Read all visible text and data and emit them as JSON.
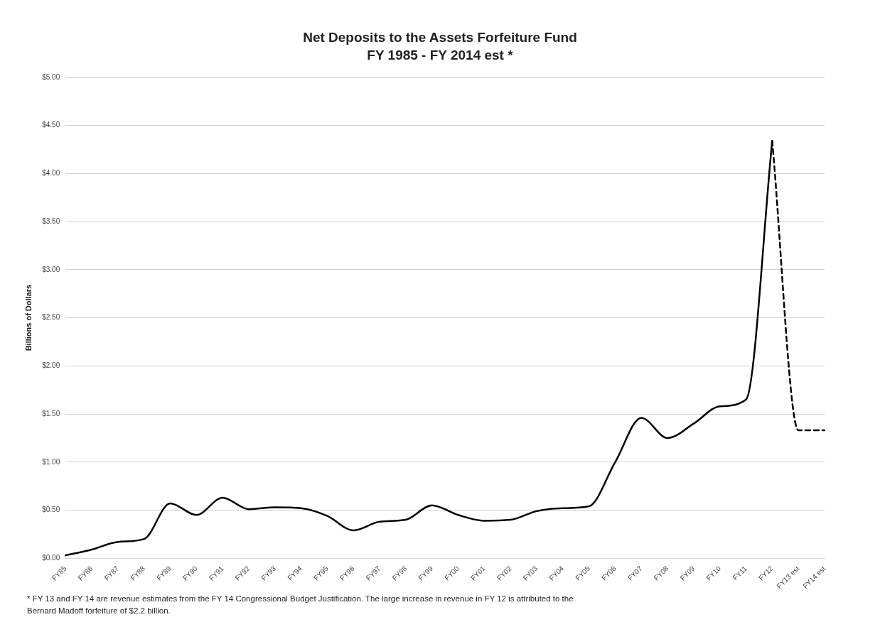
{
  "chart_data": {
    "type": "line",
    "title": "Net Deposits to the Assets Forfeiture Fund",
    "subtitle": "FY 1985 - FY 2014 est *",
    "ylabel": "Billions of Dollars",
    "categories": [
      "FY85",
      "FY86",
      "FY87",
      "FY88",
      "FY89",
      "FY90",
      "FY91",
      "FY92",
      "FY93",
      "FY94",
      "FY95",
      "FY96",
      "FY97",
      "FY98",
      "FY99",
      "FY00",
      "FY01",
      "FY02",
      "FY03",
      "FY04",
      "FY05",
      "FY06",
      "FY07",
      "FY08",
      "FY09",
      "FY10",
      "FY11",
      "FY12",
      "FY13 est",
      "FY14 est"
    ],
    "series": [
      {
        "color": "#000000",
        "line_style": "solid",
        "values": [
          0.03,
          0.09,
          0.17,
          0.2,
          0.57,
          0.45,
          0.63,
          0.51,
          0.53,
          0.52,
          0.44,
          0.29,
          0.38,
          0.4,
          0.55,
          0.45,
          0.39,
          0.4,
          0.49,
          0.52,
          0.54,
          1.0,
          1.46,
          1.25,
          1.4,
          1.58,
          1.65,
          4.34,
          null,
          null
        ]
      },
      {
        "color": "#000000",
        "line_style": "dashed",
        "values": [
          null,
          null,
          null,
          null,
          null,
          null,
          null,
          null,
          null,
          null,
          null,
          null,
          null,
          null,
          null,
          null,
          null,
          null,
          null,
          null,
          null,
          null,
          null,
          null,
          null,
          null,
          null,
          4.34,
          1.33,
          1.33
        ]
      }
    ],
    "ylim": [
      0,
      5
    ],
    "yticks": [
      {
        "value": 0,
        "label": "$0.00"
      },
      {
        "value": 0.5,
        "label": "$0.50"
      },
      {
        "value": 1,
        "label": "$1.00"
      },
      {
        "value": 1.5,
        "label": "$1.50"
      },
      {
        "value": 2,
        "label": "$2.00"
      },
      {
        "value": 2.5,
        "label": "$2.50"
      },
      {
        "value": 3,
        "label": "$3.00"
      },
      {
        "value": 3.5,
        "label": "$3.50"
      },
      {
        "value": 4,
        "label": "$4.00"
      },
      {
        "value": 4.5,
        "label": "$4.50"
      },
      {
        "value": 5,
        "label": "$5.00"
      }
    ],
    "grid": "y",
    "legend": false,
    "marker": "none",
    "annotations": [
      "* FY 13 and FY 14 are revenue estimates from the FY 14 Congressional Budget Justification.  The large increase in  revenue in FY 12 is attributed to the Bernard Madoff  forfeiture of $2.2 billion."
    ]
  }
}
